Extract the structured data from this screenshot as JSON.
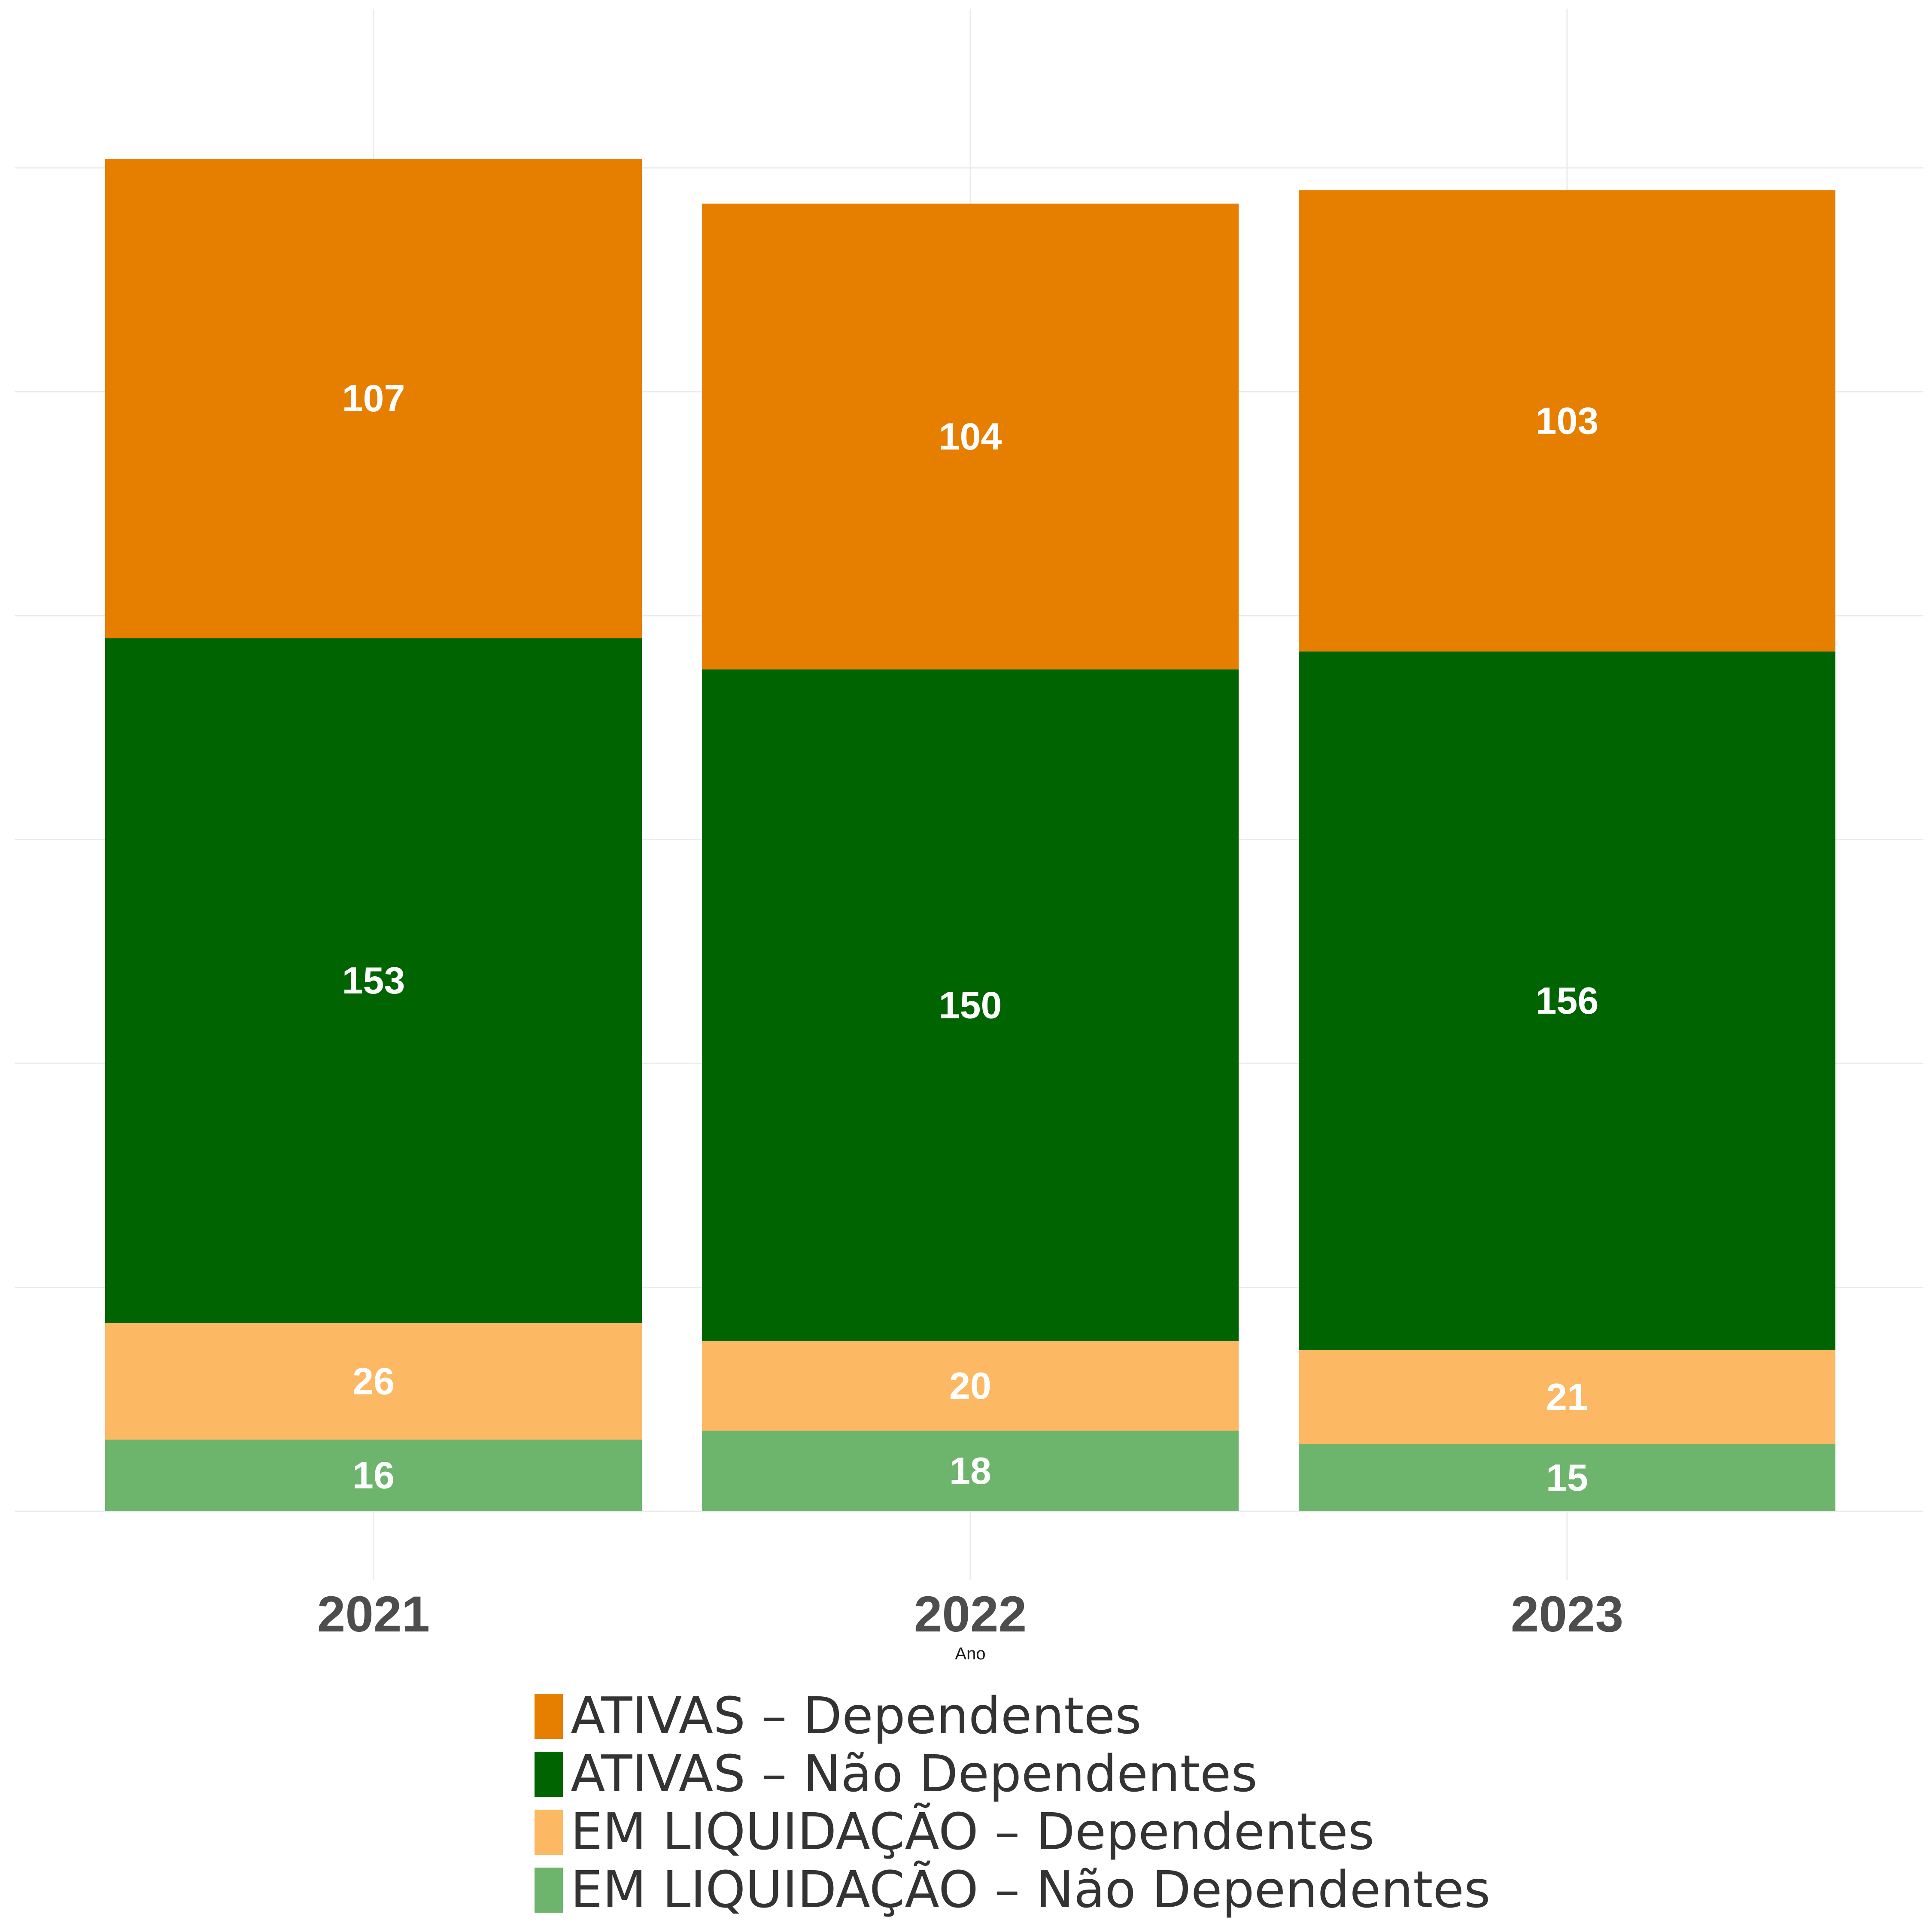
{
  "chart_data": {
    "type": "bar",
    "stacked": true,
    "categories": [
      "2021",
      "2022",
      "2023"
    ],
    "xlabel": "Ano",
    "ylabel": "",
    "ylim": [
      0,
      320
    ],
    "grid": true,
    "legend_position": "bottom",
    "series": [
      {
        "name": "EM LIQUIDAÇÃO – Não Dependentes",
        "color": "#6db56d",
        "values": [
          16,
          18,
          15
        ]
      },
      {
        "name": "EM LIQUIDAÇÃO – Dependentes",
        "color": "#fdb863",
        "values": [
          26,
          20,
          21
        ]
      },
      {
        "name": "ATIVAS – Não Dependentes",
        "color": "#006400",
        "values": [
          153,
          150,
          156
        ]
      },
      {
        "name": "ATIVAS – Dependentes",
        "color": "#e67e00",
        "values": [
          107,
          104,
          103
        ]
      }
    ],
    "legend_order": [
      "ATIVAS – Dependentes",
      "ATIVAS – Não Dependentes",
      "EM LIQUIDAÇÃO – Dependentes",
      "EM LIQUIDAÇÃO – Não Dependentes"
    ]
  }
}
